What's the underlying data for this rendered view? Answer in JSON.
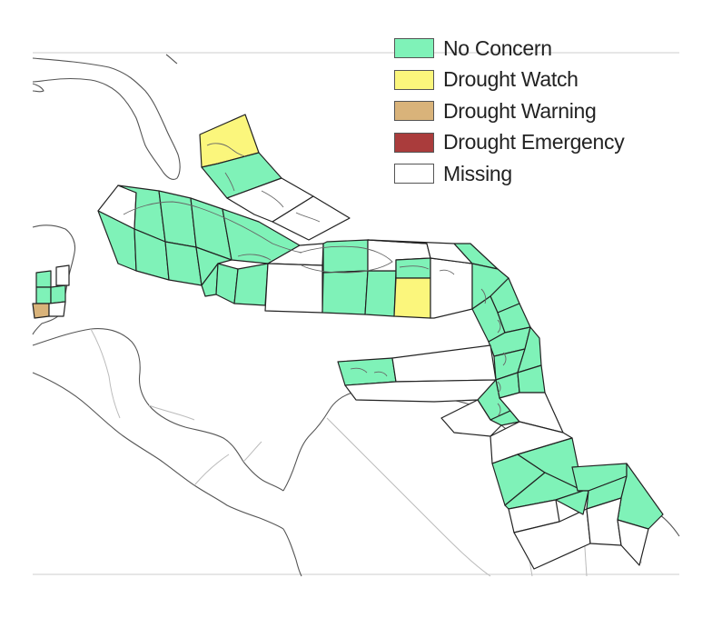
{
  "colors": {
    "no_concern": "#7ff2b8",
    "drought_watch": "#fbf67c",
    "drought_warning": "#d9b37a",
    "drought_emergency": "#aa3c3c",
    "missing": "#ffffff",
    "coastline": "#555555",
    "zone_border": "#222222"
  },
  "legend": {
    "items": [
      {
        "label": "No Concern",
        "status": "no_concern",
        "color": "#7ff2b8"
      },
      {
        "label": "Drought Watch",
        "status": "drought_watch",
        "color": "#fbf67c"
      },
      {
        "label": "Drought Warning",
        "status": "drought_warning",
        "color": "#d9b37a"
      },
      {
        "label": "Drought Emergency",
        "status": "drought_emergency",
        "color": "#aa3c3c"
      },
      {
        "label": "Missing",
        "status": "missing",
        "color": "#ffffff"
      }
    ]
  },
  "map": {
    "region": "caribbean",
    "zone_status_counts": {
      "no_concern": "majority",
      "drought_watch": "bahamas-north, puerto-rico-south",
      "drought_warning": "belize-south"
    }
  }
}
